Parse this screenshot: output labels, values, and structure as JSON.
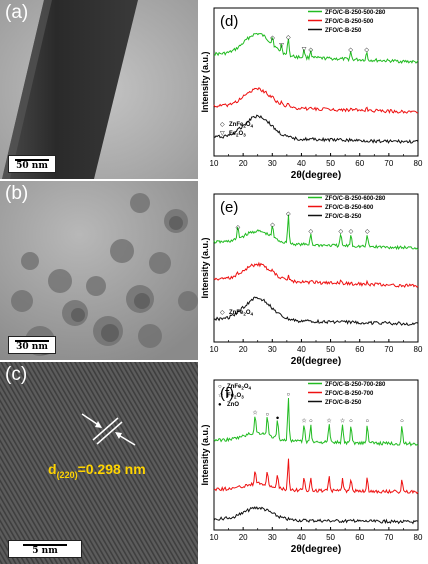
{
  "figure": {
    "panels": {
      "a": {
        "letter": "(a)",
        "scale": "50 nm"
      },
      "b": {
        "letter": "(b)",
        "scale": "30 nm"
      },
      "c": {
        "letter": "(c)",
        "scale": "5 nm",
        "d_prefix": "d",
        "d_sub": "(220)",
        "d_value": "=0.298 nm"
      }
    }
  },
  "chart_data": [
    {
      "type": "line",
      "panel": "(d)",
      "xlabel": "2θ(degree)",
      "ylabel": "Intensity (a.u.)",
      "xlim": [
        10,
        80
      ],
      "xticks": [
        10,
        20,
        30,
        40,
        50,
        60,
        70,
        80
      ],
      "series": [
        {
          "name": "ZFO/C-B-250-500-280",
          "color": "#22bb22"
        },
        {
          "name": "ZFO/C-B-250-500",
          "color": "#ee1111"
        },
        {
          "name": "ZFO/C-B-250",
          "color": "#111111"
        }
      ],
      "markers_legend": [
        {
          "symbol": "◇",
          "label": "ZnFe",
          "s1": "2",
          "mid": "O",
          "s2": "4"
        },
        {
          "symbol": "▽",
          "label": "Fe",
          "s1": "2",
          "mid": "O",
          "s2": "3"
        }
      ],
      "peaks": [
        {
          "x": 30.1,
          "symbol": "◇"
        },
        {
          "x": 33.2,
          "symbol": "▽"
        },
        {
          "x": 35.5,
          "symbol": "◇"
        },
        {
          "x": 40.9,
          "symbol": "▽"
        },
        {
          "x": 43.2,
          "symbol": "◇"
        },
        {
          "x": 56.9,
          "symbol": "◇"
        },
        {
          "x": 62.4,
          "symbol": "◇"
        }
      ]
    },
    {
      "type": "line",
      "panel": "(e)",
      "xlabel": "2θ(degree)",
      "ylabel": "Intensity (a.u.)",
      "xlim": [
        10,
        80
      ],
      "xticks": [
        10,
        20,
        30,
        40,
        50,
        60,
        70,
        80
      ],
      "series": [
        {
          "name": "ZFO/C-B-250-600-280",
          "color": "#22bb22"
        },
        {
          "name": "ZFO/C-B-250-600",
          "color": "#ee1111"
        },
        {
          "name": "ZFO/C-B-250",
          "color": "#111111"
        }
      ],
      "markers_legend": [
        {
          "symbol": "◇",
          "label": "ZnFe",
          "s1": "2",
          "mid": "O",
          "s2": "4"
        }
      ],
      "peaks": [
        {
          "x": 18.2,
          "symbol": "◇"
        },
        {
          "x": 30.1,
          "symbol": "◇"
        },
        {
          "x": 35.5,
          "symbol": "◇"
        },
        {
          "x": 43.2,
          "symbol": "◇"
        },
        {
          "x": 53.5,
          "symbol": "◇"
        },
        {
          "x": 57.0,
          "symbol": "◇"
        },
        {
          "x": 62.6,
          "symbol": "◇"
        }
      ]
    },
    {
      "type": "line",
      "panel": "(f)",
      "xlabel": "2θ(degree)",
      "ylabel": "Intensity (a.u.)",
      "xlim": [
        10,
        80
      ],
      "xticks": [
        10,
        20,
        30,
        40,
        50,
        60,
        70,
        80
      ],
      "series": [
        {
          "name": "ZFO/C-B-250-700-280",
          "color": "#22bb22"
        },
        {
          "name": "ZFO/C-B-250-700",
          "color": "#ee1111"
        },
        {
          "name": "ZFO/C-B-250",
          "color": "#111111"
        }
      ],
      "markers_legend": [
        {
          "symbol": "○",
          "label": "ZnFe",
          "s1": "2",
          "mid": "O",
          "s2": "4"
        },
        {
          "symbol": "☆",
          "label": "Fe",
          "s1": "2",
          "mid": "O",
          "s2": "3"
        },
        {
          "symbol": "●",
          "label": "ZnO",
          "s1": "",
          "mid": "",
          "s2": ""
        }
      ],
      "peaks": [
        {
          "x": 24.1,
          "symbol": "☆"
        },
        {
          "x": 28.3,
          "symbol": "○"
        },
        {
          "x": 31.8,
          "symbol": "●"
        },
        {
          "x": 35.5,
          "symbol": "○"
        },
        {
          "x": 40.9,
          "symbol": "☆"
        },
        {
          "x": 43.2,
          "symbol": "○"
        },
        {
          "x": 49.5,
          "symbol": "☆"
        },
        {
          "x": 54.1,
          "symbol": "☆"
        },
        {
          "x": 57.0,
          "symbol": "○"
        },
        {
          "x": 62.6,
          "symbol": "○"
        },
        {
          "x": 74.5,
          "symbol": "○"
        }
      ]
    }
  ]
}
